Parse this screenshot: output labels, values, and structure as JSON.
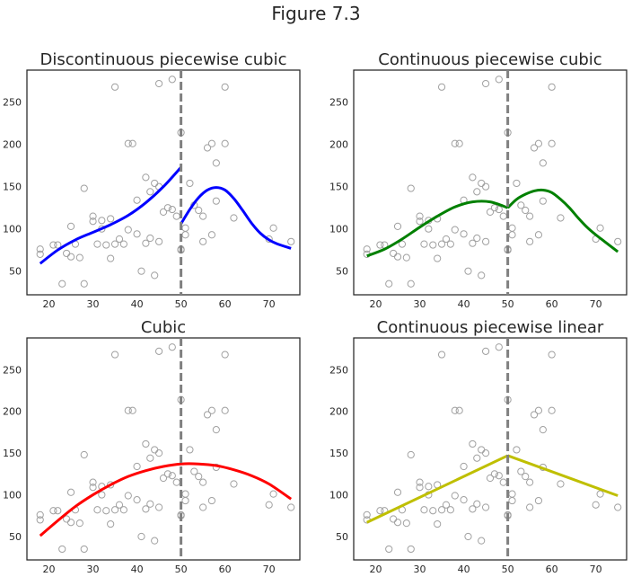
{
  "figure": {
    "suptitle": "Figure 7.3"
  },
  "chart_data": [
    {
      "type": "scatter+line",
      "title": "Discontinuous piecewise cubic",
      "line_color": "#0000ff",
      "xlim": [
        15,
        77
      ],
      "ylim": [
        22,
        288
      ],
      "xticks": [
        20,
        30,
        40,
        50,
        60,
        70
      ],
      "yticks": [
        50,
        100,
        150,
        200,
        250
      ],
      "knot": 50,
      "fit_segments": [
        {
          "x": [
            18,
            22,
            26,
            30,
            34,
            38,
            42,
            46,
            50
          ],
          "y": [
            59,
            75,
            87,
            96,
            105,
            116,
            131,
            150,
            173
          ]
        },
        {
          "x": [
            50,
            52,
            54,
            56,
            58,
            60,
            62,
            64,
            66,
            68,
            70,
            72,
            75
          ],
          "y": [
            106,
            123,
            137,
            146,
            149,
            146,
            136,
            122,
            107,
            95,
            87,
            82,
            77
          ]
        }
      ]
    },
    {
      "type": "scatter+line",
      "title": "Continuous piecewise cubic",
      "line_color": "#008000",
      "xlim": [
        15,
        77
      ],
      "ylim": [
        22,
        288
      ],
      "xticks": [
        20,
        30,
        40,
        50,
        60,
        70
      ],
      "yticks": [
        50,
        100,
        150,
        200,
        250
      ],
      "knot": 50,
      "fit_segments": [
        {
          "x": [
            18,
            22,
            26,
            30,
            34,
            38,
            42,
            46,
            50
          ],
          "y": [
            68,
            76,
            88,
            102,
            115,
            126,
            132,
            132,
            125
          ]
        },
        {
          "x": [
            50,
            52,
            54,
            56,
            58,
            60,
            62,
            64,
            66,
            68,
            70,
            72,
            75
          ],
          "y": [
            125,
            135,
            141,
            145,
            146,
            143,
            135,
            125,
            113,
            102,
            93,
            85,
            73
          ]
        }
      ]
    },
    {
      "type": "scatter+line",
      "title": "Cubic",
      "line_color": "#ff0000",
      "xlim": [
        15,
        77
      ],
      "ylim": [
        22,
        288
      ],
      "xticks": [
        20,
        30,
        40,
        50,
        60,
        70
      ],
      "yticks": [
        50,
        100,
        150,
        200,
        250
      ],
      "knot": 50,
      "fit_segments": [
        {
          "x": [
            18,
            22,
            26,
            30,
            34,
            38,
            42,
            46,
            50,
            54,
            58,
            62,
            66,
            70,
            75
          ],
          "y": [
            51,
            69,
            86,
            100,
            112,
            122,
            129,
            134,
            137,
            137,
            135,
            130,
            123,
            113,
            95
          ]
        }
      ]
    },
    {
      "type": "scatter+line",
      "title": "Continuous piecewise linear",
      "line_color": "#bfbf00",
      "xlim": [
        15,
        77
      ],
      "ylim": [
        22,
        288
      ],
      "xticks": [
        20,
        30,
        40,
        50,
        60,
        70
      ],
      "yticks": [
        50,
        100,
        150,
        200,
        250
      ],
      "knot": 50,
      "fit_segments": [
        {
          "x": [
            18,
            50
          ],
          "y": [
            67,
            147
          ]
        },
        {
          "x": [
            50,
            75
          ],
          "y": [
            147,
            99
          ]
        }
      ]
    }
  ],
  "scatter_points": {
    "x": [
      18,
      18,
      21,
      22,
      23,
      24,
      25,
      25,
      26,
      27,
      28,
      28,
      30,
      30,
      31,
      32,
      32,
      33,
      34,
      34,
      35,
      35,
      36,
      37,
      38,
      38,
      39,
      40,
      40,
      41,
      42,
      42,
      43,
      43,
      44,
      44,
      45,
      45,
      45,
      46,
      47,
      48,
      48,
      49,
      50,
      50,
      50,
      51,
      51,
      52,
      53,
      54,
      55,
      55,
      56,
      57,
      57,
      58,
      58,
      60,
      60,
      62,
      70,
      71,
      75
    ],
    "y": [
      70,
      76,
      81,
      81,
      35,
      71,
      67,
      103,
      82,
      66,
      35,
      148,
      109,
      115,
      82,
      100,
      110,
      81,
      112,
      65,
      82,
      268,
      88,
      82,
      201,
      99,
      201,
      134,
      94,
      50,
      161,
      83,
      89,
      144,
      154,
      45,
      272,
      150,
      85,
      120,
      125,
      123,
      277,
      115,
      75,
      76,
      214,
      93,
      101,
      154,
      128,
      122,
      115,
      85,
      196,
      93,
      201,
      178,
      133,
      201,
      268,
      113,
      88,
      101,
      85
    ]
  },
  "colors": {
    "scatter_edge": "#a0a0a0",
    "knot_line": "#808080",
    "axes_edge": "#262626"
  }
}
